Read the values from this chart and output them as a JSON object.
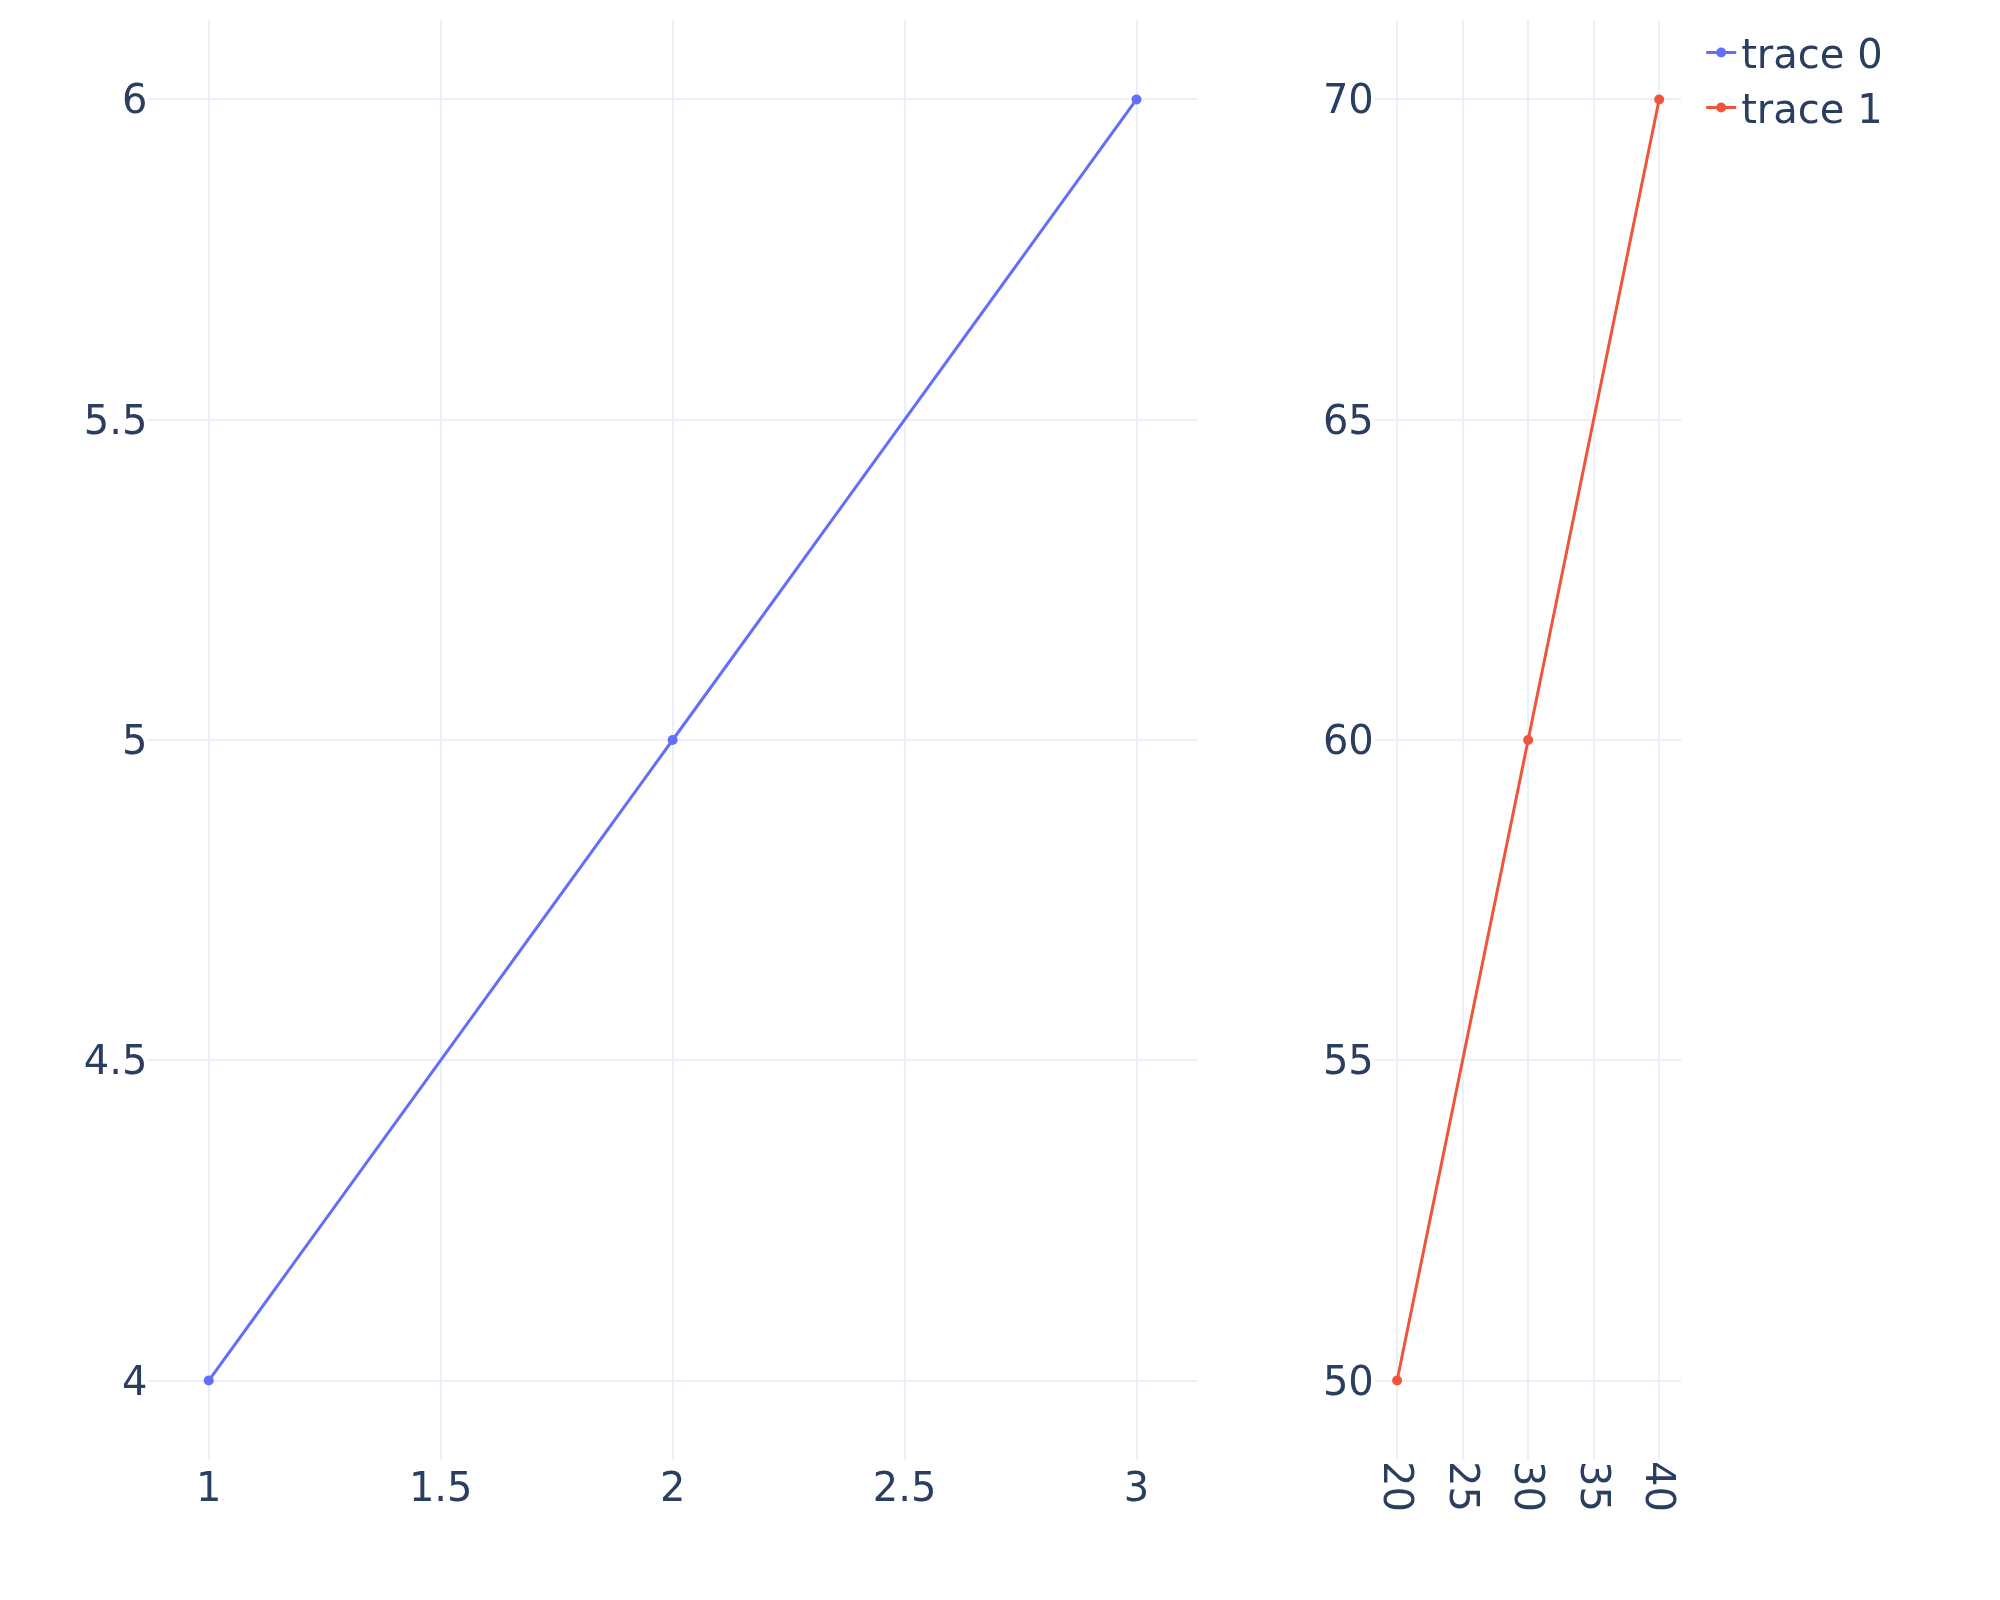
{
  "chart_data": [
    {
      "type": "line",
      "x": [
        1,
        2,
        3
      ],
      "series": [
        {
          "name": "trace 0",
          "color": "#636efa",
          "values": [
            4,
            5,
            6
          ]
        }
      ],
      "xlim": [
        0.87,
        3.13
      ],
      "xticks": [
        1,
        1.5,
        2,
        2.5,
        3
      ],
      "ylim": [
        3.876,
        6.124
      ],
      "yticks": [
        4,
        4.5,
        5,
        5.5,
        6
      ],
      "grid": true,
      "marker": "circle",
      "legend": "top right"
    },
    {
      "type": "line",
      "x": [
        20,
        30,
        40
      ],
      "series": [
        {
          "name": "trace 1",
          "color": "#ef553b",
          "values": [
            50,
            60,
            70
          ]
        }
      ],
      "xlim": [
        18.3,
        41.7
      ],
      "xticks": [
        20,
        25,
        30,
        35,
        40
      ],
      "ylim": [
        48.76,
        71.24
      ],
      "yticks": [
        50,
        55,
        60,
        65,
        70
      ],
      "grid": true,
      "marker": "circle",
      "legend": "top right"
    }
  ]
}
